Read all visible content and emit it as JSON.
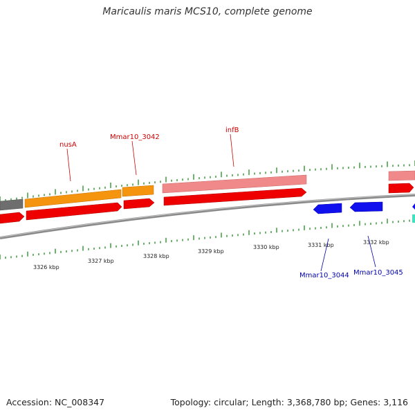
{
  "title": "Maricaulis maris MCS10, complete genome",
  "footer": {
    "accession": "Accession: NC_008347",
    "summary": "Topology: circular; Length: 3,368,780 bp; Genes: 3,116"
  },
  "colors": {
    "backbone": "#8a8a8a",
    "tick": "#1e8a1e",
    "forward_cds": "#ee0000",
    "forward_rna_light": "#f08a8a",
    "orange": "#f5940e",
    "gray_feature": "#6e6e6e",
    "reverse_cds": "#1010ee",
    "cyan": "#40e0c0",
    "label_red": "#cc0000",
    "label_blue": "#0000aa"
  },
  "axis": {
    "ticks": [
      {
        "kbp": 3326,
        "label": "3326 kbp"
      },
      {
        "kbp": 3327,
        "label": "3327 kbp"
      },
      {
        "kbp": 3328,
        "label": "3328 kbp"
      },
      {
        "kbp": 3329,
        "label": "3329 kbp"
      },
      {
        "kbp": 3330,
        "label": "3330 kbp"
      },
      {
        "kbp": 3331,
        "label": "3331 kbp"
      },
      {
        "kbp": 3332,
        "label": "3332 kbp"
      }
    ]
  },
  "genes": [
    {
      "name": "nusA",
      "color": "label_red"
    },
    {
      "name": "Mmar10_3042",
      "color": "label_red"
    },
    {
      "name": "infB",
      "color": "label_red"
    },
    {
      "name": "Mmar10_3044",
      "color": "label_blue"
    },
    {
      "name": "Mmar10_3045",
      "color": "label_blue"
    }
  ]
}
